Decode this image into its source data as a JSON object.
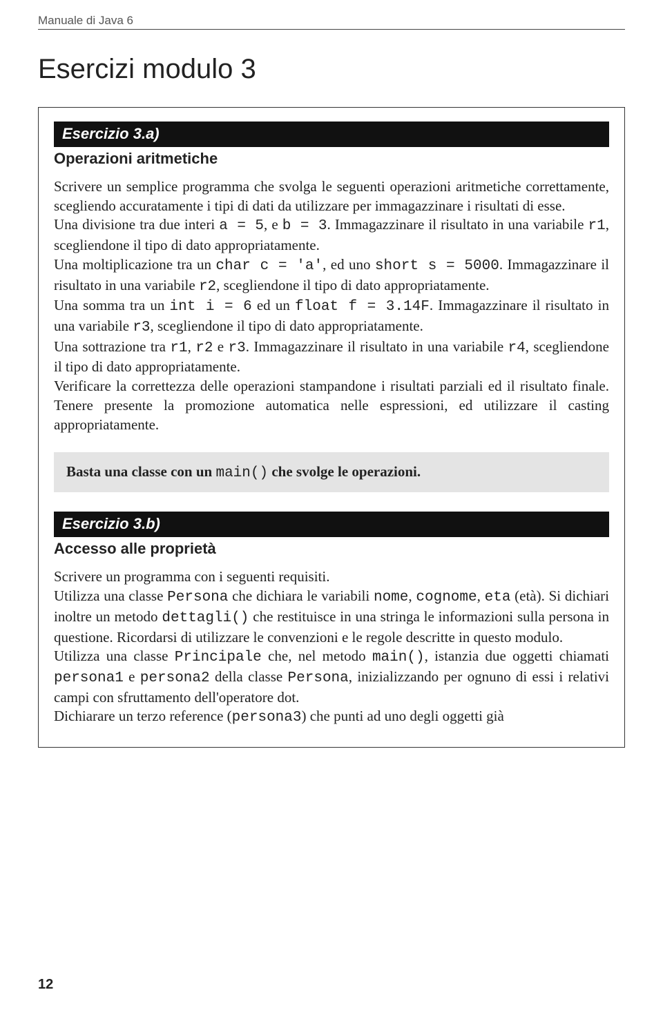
{
  "header": {
    "text": "Manuale di Java 6"
  },
  "title": "Esercizi modulo 3",
  "exerciseA": {
    "label": "Esercizio 3.a)",
    "subtitle": "Operazioni aritmetiche",
    "p1": "Scrivere un semplice programma che svolga le seguenti operazioni aritmetiche correttamente, scegliendo accuratamente i tipi di dati da utilizzare per immagazzinare i risultati di esse.",
    "p2_pre": "Una divisione tra due interi ",
    "p2_code1": "a = 5",
    "p2_mid": ", e ",
    "p2_code2": "b = 3",
    "p2_post": ". Immagazzinare il risultato in una variabile ",
    "p2_code3": "r1",
    "p2_end": ", scegliendone il tipo di dato appropriatamente.",
    "p3_pre": "Una moltiplicazione tra un ",
    "p3_code1": "char c = 'a'",
    "p3_mid": ", ed uno ",
    "p3_code2": "short s = 5000",
    "p3_post": ". Immagazzinare il risultato in una variabile ",
    "p3_code3": "r2",
    "p3_end": ", scegliendone il tipo di dato appropriatamente.",
    "p4_pre": "Una somma tra un ",
    "p4_code1": "int i = 6",
    "p4_mid": " ed un ",
    "p4_code2": "float f = 3.14F",
    "p4_post": ". Immagazzinare il risultato in una variabile ",
    "p4_code3": "r3",
    "p4_end": ", scegliendone il tipo di dato appropriatamente.",
    "p5_pre": "Una sottrazione tra ",
    "p5_code1": "r1",
    "p5_mid1": ", ",
    "p5_code2": "r2",
    "p5_mid2": " e ",
    "p5_code3": "r3",
    "p5_post": ". Immagazzinare il risultato in una variabile ",
    "p5_code4": "r4",
    "p5_end": ", scegliendone il tipo di dato appropriatamente.",
    "p6": "Verificare la correttezza delle operazioni stampandone i risultati parziali ed il risultato finale. Tenere presente la promozione automatica nelle espressioni, ed utilizzare il casting appropriatamente.",
    "hint_pre": "Basta una classe con un ",
    "hint_code": "main()",
    "hint_post": " che svolge le operazioni."
  },
  "exerciseB": {
    "label": "Esercizio 3.b)",
    "subtitle": "Accesso alle proprietà",
    "p1": "Scrivere un programma con i seguenti requisiti.",
    "p2_pre": "Utilizza una classe ",
    "p2_c1": "Persona",
    "p2_m1": " che dichiara le variabili ",
    "p2_c2": "nome",
    "p2_m2": ", ",
    "p2_c3": "cognome",
    "p2_m3": ", ",
    "p2_c4": "eta",
    "p2_m4": " (età). Si dichiari inoltre un metodo ",
    "p2_c5": "dettagli()",
    "p2_m5": " che restituisce in una stringa le informazioni sulla persona in questione. Ricordarsi di utilizzare le convenzioni e le regole descritte in questo modulo.",
    "p3_pre": "Utilizza una classe ",
    "p3_c1": "Principale",
    "p3_m1": " che, nel metodo ",
    "p3_c2": "main()",
    "p3_m2": ", istanzia due oggetti chiamati ",
    "p3_c3": "persona1",
    "p3_m3": " e ",
    "p3_c4": "persona2",
    "p3_m4": " della classe ",
    "p3_c5": "Persona",
    "p3_m5": ", inizializzando per ognuno di essi i relativi campi con sfruttamento dell'operatore dot.",
    "p4_pre": "Dichiarare un terzo reference (",
    "p4_c1": "persona3",
    "p4_post": ") che punti ad uno degli oggetti già"
  },
  "pageNumber": "12",
  "colors": {
    "bg": "#ffffff",
    "text": "#222222",
    "headerText": "#555555",
    "blackBar": "#111111",
    "hintBg": "#e4e4e4",
    "border": "#333333"
  }
}
